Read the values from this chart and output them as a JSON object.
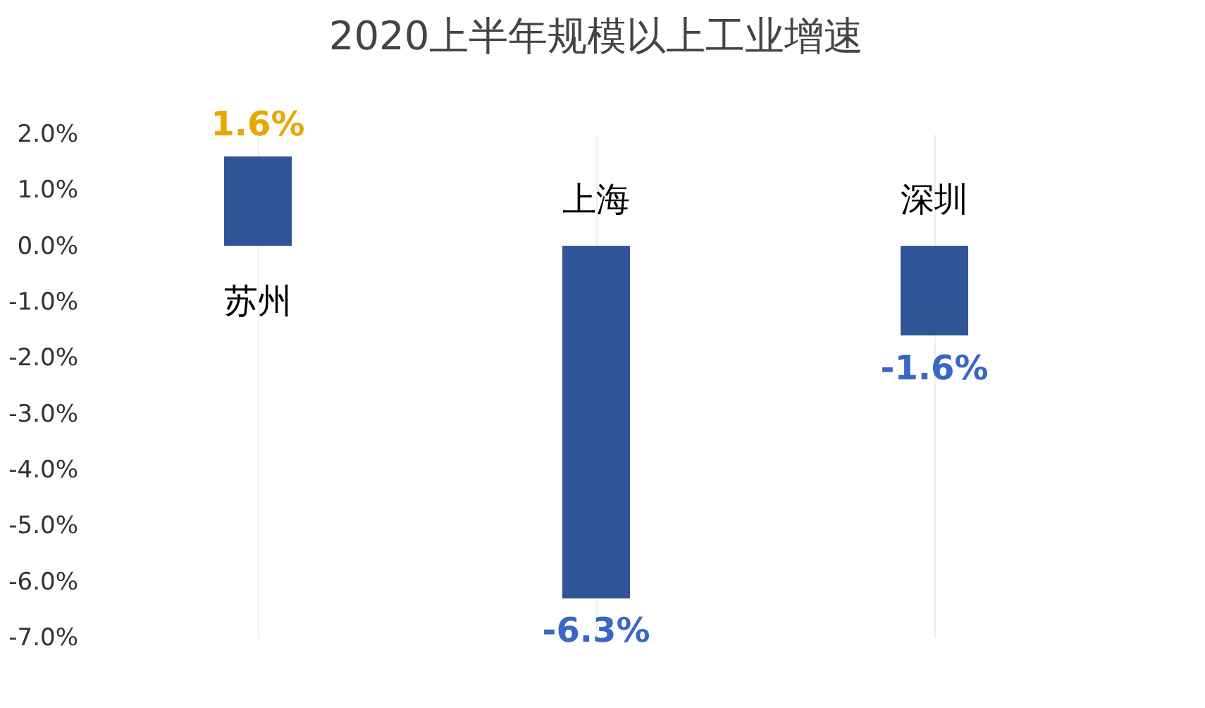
{
  "chart_data": {
    "type": "bar",
    "title": "2020上半年规模以上工业增速",
    "categories": [
      "苏州",
      "上海",
      "深圳"
    ],
    "values": [
      1.6,
      -6.3,
      -1.6
    ],
    "color": "#2f5597",
    "value_labels": [
      "1.6%",
      "-6.3%",
      "-1.6%"
    ],
    "ylim": [
      -7,
      2
    ],
    "yticks": [
      {
        "value": 2,
        "label": "2.0%"
      },
      {
        "value": 1,
        "label": "1.0%"
      },
      {
        "value": 0,
        "label": "0.0%"
      },
      {
        "value": -1,
        "label": "-1.0%"
      },
      {
        "value": -2,
        "label": "-2.0%"
      },
      {
        "value": -3,
        "label": "-3.0%"
      },
      {
        "value": -4,
        "label": "-4.0%"
      },
      {
        "value": -5,
        "label": "-5.0%"
      },
      {
        "value": -6,
        "label": "-6.0%"
      },
      {
        "value": -7,
        "label": "-7.0%"
      }
    ],
    "grid": "x",
    "tick_labels": "y"
  }
}
